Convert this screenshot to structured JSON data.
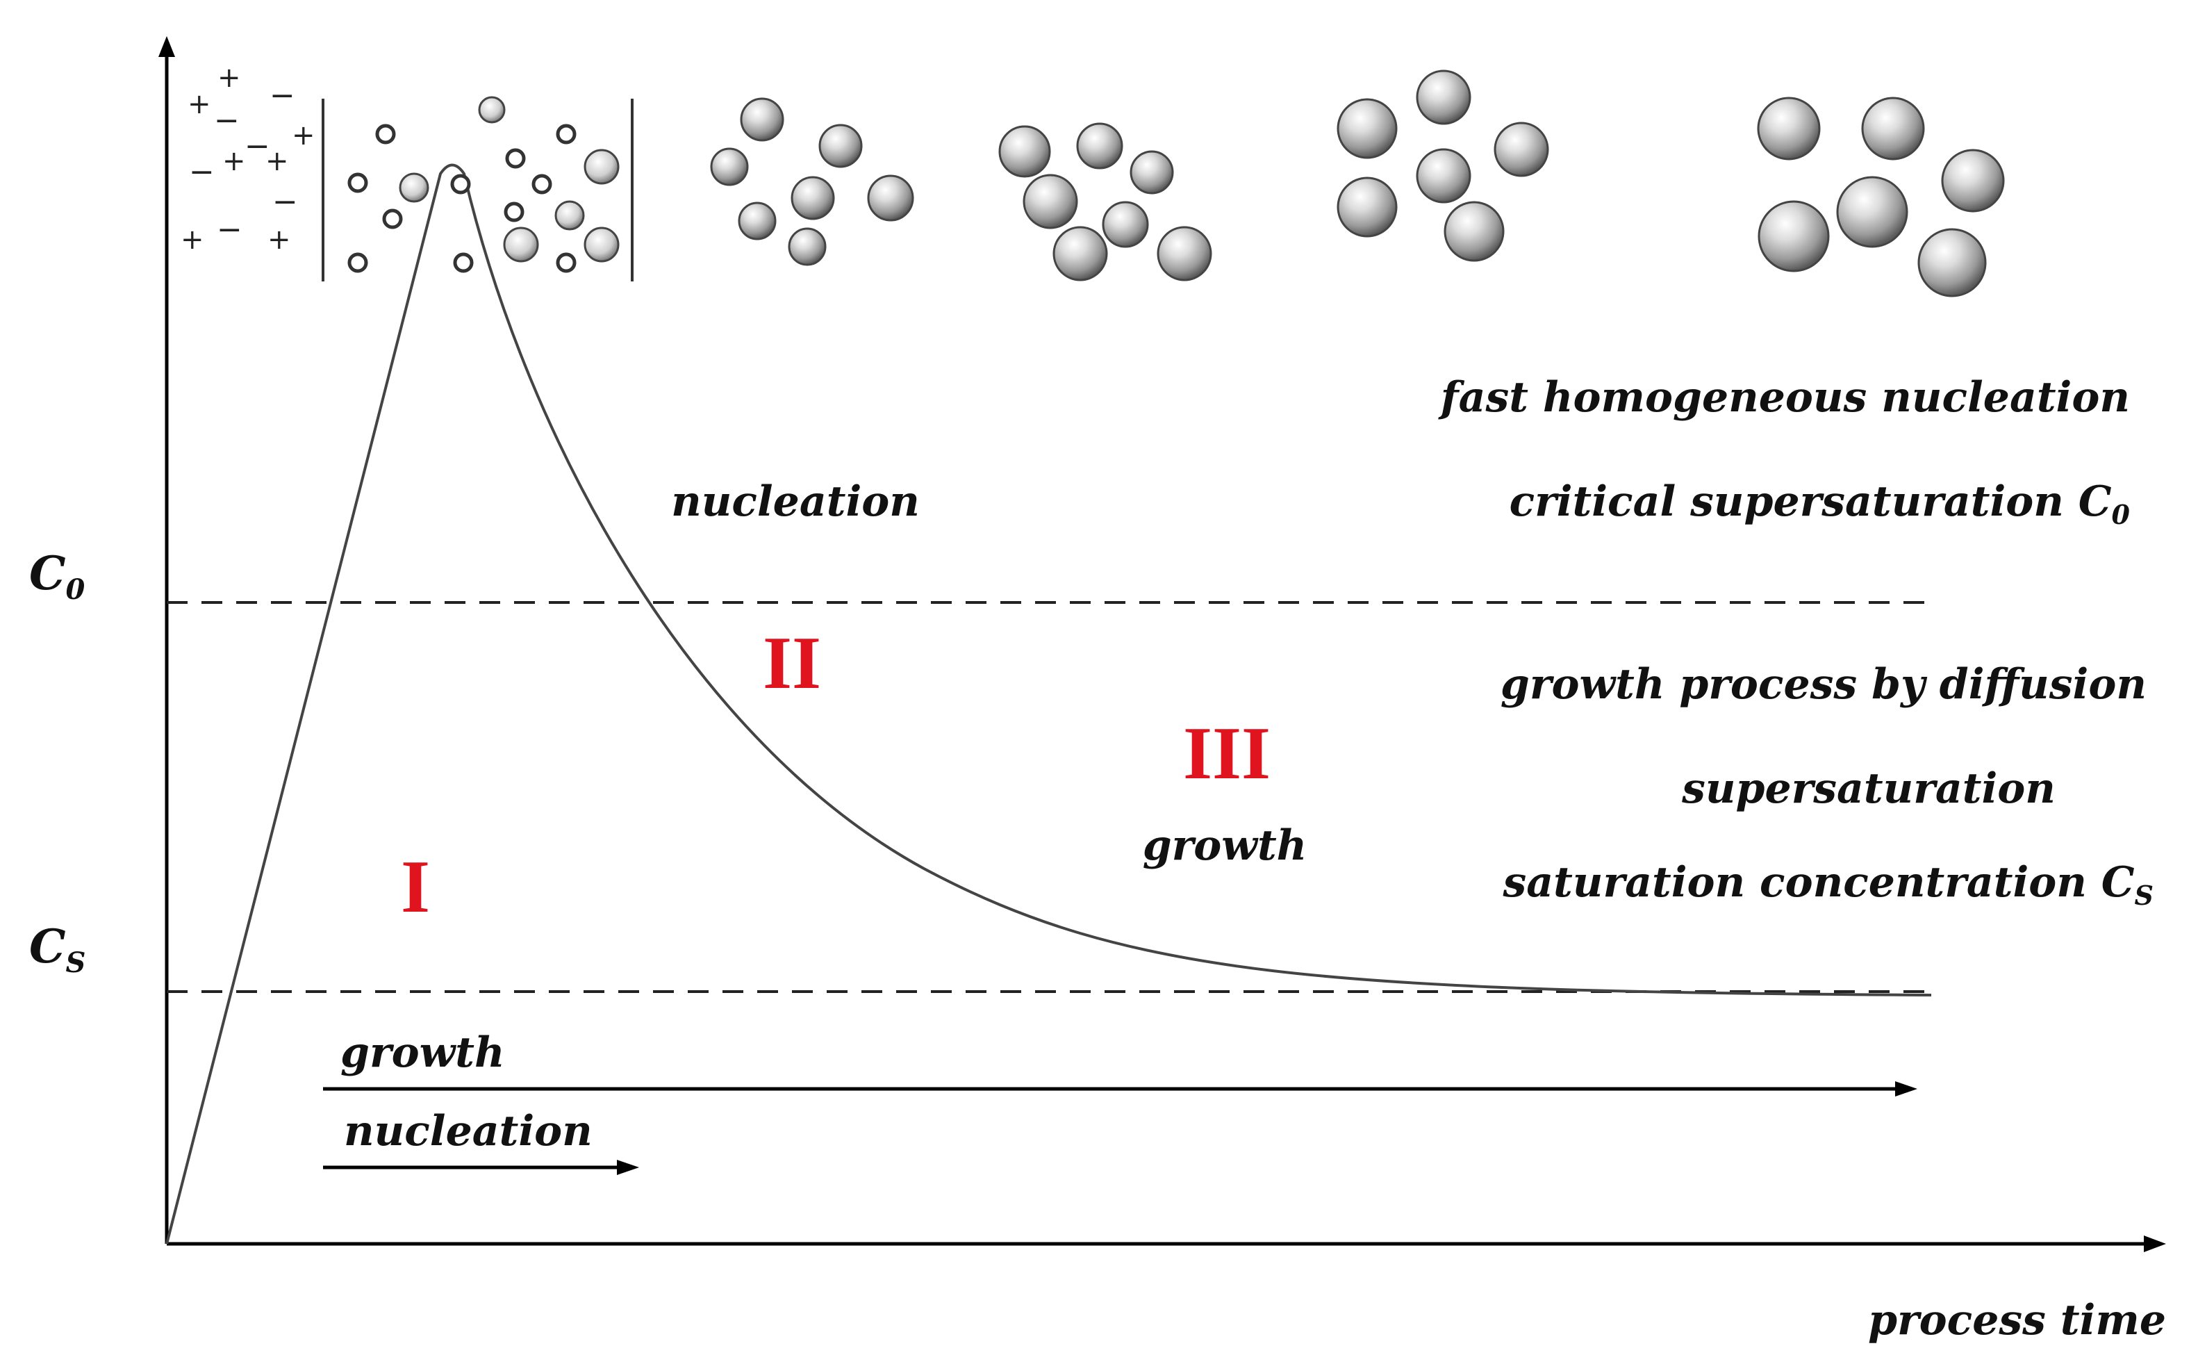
{
  "diagram": {
    "axis_y_symbols": {
      "c0": {
        "main": "C",
        "sub": "0"
      },
      "cs": {
        "main": "C",
        "sub": "S"
      }
    },
    "x_axis_label": "process time",
    "stage_labels": [
      "I",
      "II",
      "III"
    ],
    "stage_color": "#e0141e",
    "region_labels": {
      "nucleation": "nucleation",
      "growth": "growth"
    },
    "right_labels": {
      "fast_nucleation": "fast homogeneous nucleation",
      "critical_main": "critical supersaturation C",
      "critical_sub": "0",
      "growth_diffusion": "growth process by diffusion",
      "supersaturation": "supersaturation",
      "saturation_main": "saturation concentration C",
      "saturation_sub": "S"
    },
    "timeline": {
      "growth": "growth",
      "nucleation": "nucleation"
    },
    "ions": {
      "plus": "+",
      "minus": "−"
    }
  }
}
